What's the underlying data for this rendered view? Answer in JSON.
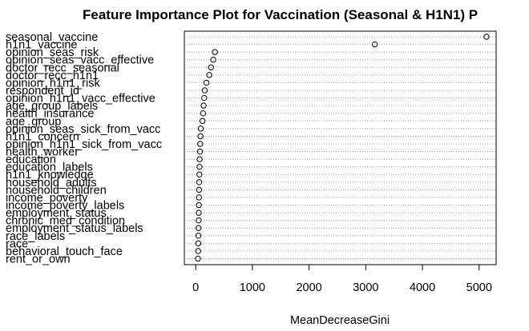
{
  "chart_data": {
    "type": "scatter",
    "style": "dotchart",
    "title": "Feature Importance Plot for Vaccination (Seasonal & H1N1) P",
    "xlabel": "MeanDecreaseGini",
    "ylabel": "",
    "xlim": [
      -200,
      5300
    ],
    "xticks": [
      0,
      1000,
      2000,
      3000,
      4000,
      5000
    ],
    "grid": "dotted horizontal lines",
    "legend": "none",
    "categories": [
      "seasonal_vaccine",
      "h1n1_vaccine",
      "opinion_seas_risk",
      "opinion_seas_vacc_effective",
      "doctor_recc_seasonal",
      "doctor_recc_h1n1",
      "opinion_h1n1_risk",
      "respondent_id",
      "opinion_h1n1_vacc_effective",
      "age_group_labels",
      "health_insurance",
      "age_group",
      "opinion_seas_sick_from_vacc",
      "h1n1_concern",
      "opinion_h1n1_sick_from_vacc",
      "health_worker",
      "education",
      "education_labels",
      "h1n1_knowledge",
      "household_adults",
      "household_children",
      "income_poverty",
      "income_poverty_labels",
      "employment_status",
      "chronic_med_condition",
      "employment_status_labels",
      "race_labels",
      "race",
      "behavioral_touch_face",
      "rent_or_own"
    ],
    "values": [
      5130,
      3160,
      340,
      310,
      270,
      240,
      190,
      160,
      150,
      140,
      130,
      120,
      90,
      85,
      80,
      75,
      70,
      68,
      65,
      62,
      60,
      58,
      56,
      54,
      52,
      50,
      48,
      46,
      44,
      40
    ]
  }
}
